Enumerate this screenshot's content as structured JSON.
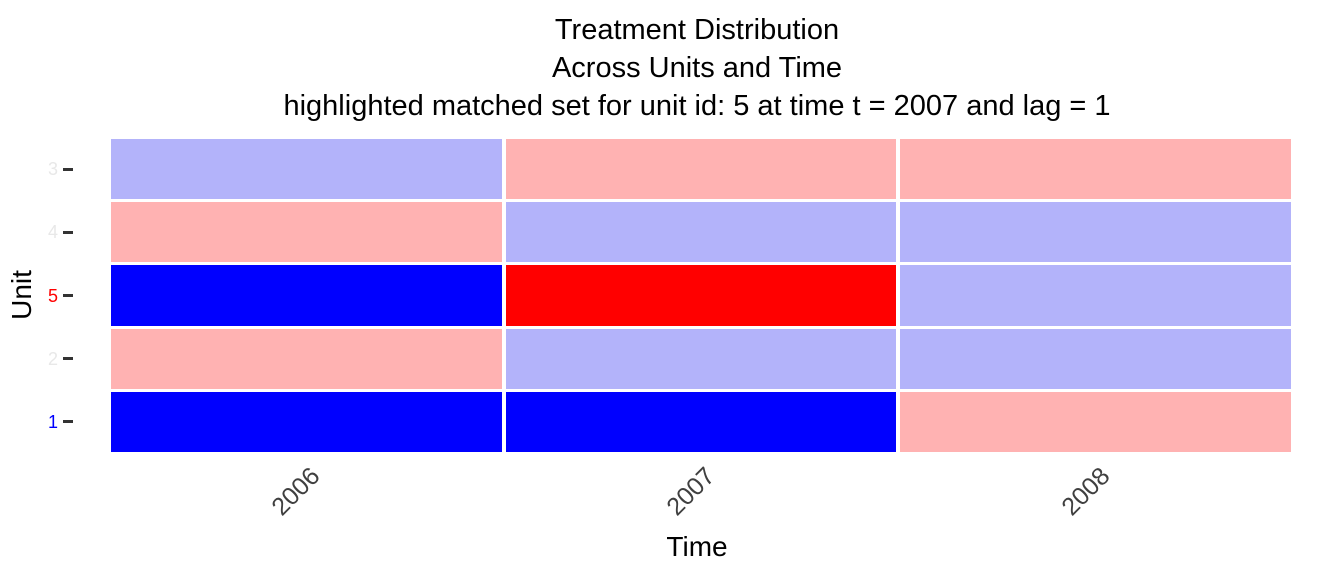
{
  "figure": {
    "title_line1": "Treatment Distribution",
    "title_line2": "Across Units and Time",
    "title_line3": "highlighted matched set for unit id: 5 at time t = 2007 and lag = 1"
  },
  "chart_data": {
    "type": "heatmap",
    "title": "Treatment Distribution\nAcross Units and Time\nhighlighted matched set for unit id: 5 at time t = 2007 and lag = 1",
    "xlabel": "Time",
    "ylabel": "Unit",
    "x_categories": [
      "2006",
      "2007",
      "2008"
    ],
    "y_categories_top_to_bottom": [
      "3",
      "4",
      "5",
      "2",
      "1"
    ],
    "grid": false,
    "legend": false,
    "rows": [
      {
        "unit": "3",
        "label_color": "#E8E8E8",
        "values": [
          "control",
          "treated",
          "treated"
        ]
      },
      {
        "unit": "4",
        "label_color": "#E8E8E8",
        "values": [
          "treated",
          "control",
          "control"
        ]
      },
      {
        "unit": "5",
        "label_color": "#FF0000",
        "values": [
          "matched_control",
          "matched_treated",
          "control"
        ]
      },
      {
        "unit": "2",
        "label_color": "#E8E8E8",
        "values": [
          "treated",
          "control",
          "control"
        ]
      },
      {
        "unit": "1",
        "label_color": "#0000FF",
        "values": [
          "matched_control",
          "matched_control",
          "treated"
        ]
      }
    ],
    "state_colors": {
      "control": "#B3B3FA",
      "treated": "#FFB2B2",
      "matched_control": "#0000FF",
      "matched_treated": "#FF0000"
    },
    "axis_colors": {
      "x_tick_label": "#404040",
      "tick_mark": "#333333",
      "axis_title": "#000000"
    }
  }
}
